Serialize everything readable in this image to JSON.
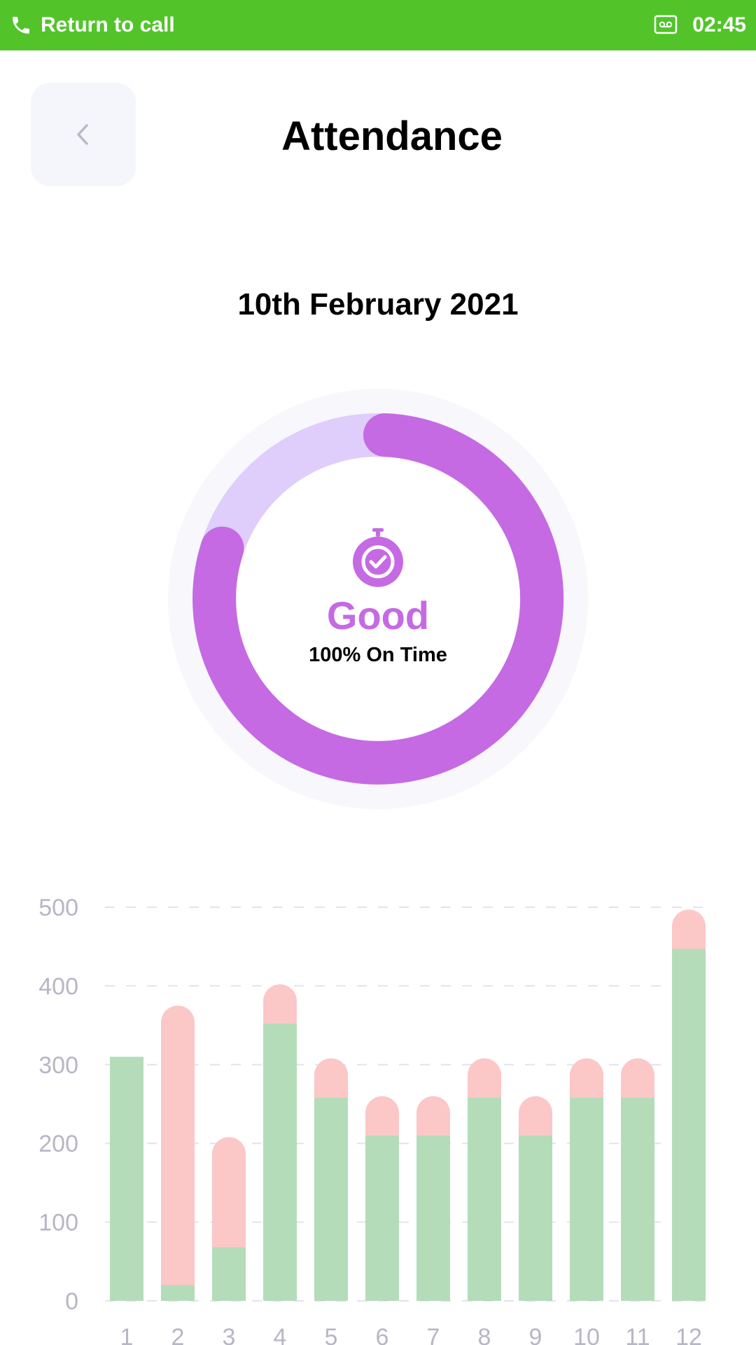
{
  "status_bar": {
    "return_label": "Return to call",
    "time": "02:45",
    "phone_icon": "phone-icon",
    "voicemail_icon": "voicemail-icon",
    "color": "#52c42a"
  },
  "header": {
    "title": "Attendance",
    "back_icon": "chevron-left-icon"
  },
  "date": "10th February 2021",
  "summary": {
    "status": "Good",
    "subtitle": "100% On Time",
    "icon": "stopwatch-check-icon",
    "progress_fraction": 0.8,
    "colors": {
      "progress": "#c56ae3",
      "track": "#dfcdfc",
      "outer": "#f7f7fc"
    }
  },
  "chart_data": {
    "type": "bar",
    "stacked": true,
    "categories": [
      "1",
      "2",
      "3",
      "4",
      "5",
      "6",
      "7",
      "8",
      "9",
      "10",
      "11",
      "12"
    ],
    "series": [
      {
        "color": "#b4dcb9",
        "values": [
          310,
          20,
          68,
          352,
          258,
          210,
          210,
          258,
          210,
          258,
          258,
          447
        ]
      },
      {
        "color": "#fcc7c7",
        "values": [
          0,
          355,
          140,
          50,
          50,
          50,
          50,
          50,
          50,
          50,
          50,
          50
        ]
      }
    ],
    "ylim": [
      0,
      500
    ],
    "yticks": [
      "0",
      "100",
      "200",
      "300",
      "400",
      "500"
    ],
    "grid": true,
    "title": "",
    "xlabel": "",
    "ylabel": ""
  }
}
